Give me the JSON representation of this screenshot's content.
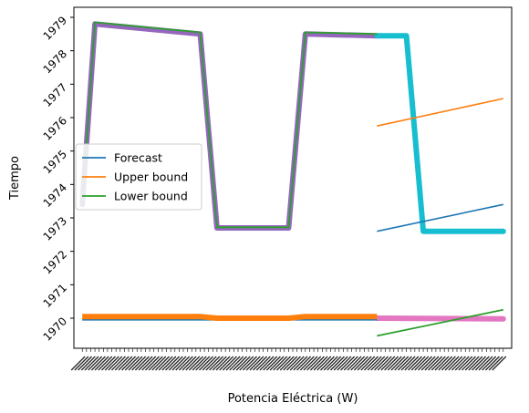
{
  "chart_data": {
    "type": "line",
    "xlabel": "Potencia Eléctrica (W)",
    "ylabel": "Tiempo",
    "ylim": [
      1969.1,
      1979.3
    ],
    "yticks": [
      1970,
      1971,
      1972,
      1973,
      1974,
      1975,
      1976,
      1977,
      1978,
      1979
    ],
    "xlim": [
      -2,
      102
    ],
    "x_tick_labels_note": "x tick labels are dense, overlapping and illegible",
    "grid": false,
    "legend": {
      "placement": "center-left",
      "entries": [
        "Forecast",
        "Upper bound",
        "Lower bound"
      ]
    },
    "colors": {
      "forecast": "#1f77b4",
      "upper": "#ff7f0e",
      "lower": "#2ca02c",
      "train": "#9467bd",
      "test": "#17becf",
      "baseline_pink": "#e377c2"
    },
    "series": [
      {
        "name": "Forecast",
        "role": "forecast",
        "x": [
          70,
          100
        ],
        "y": [
          1972.6,
          1973.4
        ]
      },
      {
        "name": "Upper bound",
        "role": "upper",
        "x": [
          70,
          100
        ],
        "y": [
          1975.75,
          1976.57
        ]
      },
      {
        "name": "Lower bound",
        "role": "lower",
        "x": [
          70,
          100
        ],
        "y": [
          1969.47,
          1970.25
        ]
      },
      {
        "role": "train",
        "x": [
          0,
          3,
          28,
          32,
          49,
          53,
          70
        ],
        "y": [
          1973.4,
          1978.8,
          1978.5,
          1972.7,
          1972.7,
          1978.5,
          1978.45
        ]
      },
      {
        "role": "lower",
        "x": [
          0,
          3,
          28,
          32,
          49,
          53,
          70
        ],
        "y": [
          1973.4,
          1978.85,
          1978.55,
          1972.72,
          1972.72,
          1978.55,
          1978.5
        ]
      },
      {
        "role": "test",
        "x": [
          70,
          77,
          81,
          100
        ],
        "y": [
          1978.45,
          1978.45,
          1972.6,
          1972.6
        ]
      },
      {
        "role": "forecast",
        "x": [
          0,
          70
        ],
        "y": [
          1969.95,
          1969.95
        ]
      },
      {
        "role": "upper",
        "x": [
          0,
          28,
          32,
          49,
          53,
          70
        ],
        "y": [
          1970.05,
          1970.05,
          1970.0,
          1970.0,
          1970.05,
          1970.05
        ]
      },
      {
        "role": "baseline_pink",
        "x": [
          70,
          100
        ],
        "y": [
          1970.0,
          1969.98
        ]
      }
    ]
  }
}
